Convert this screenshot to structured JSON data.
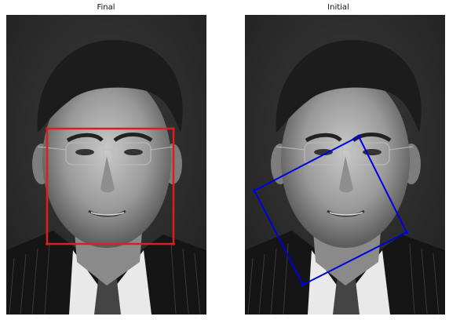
{
  "panels": {
    "left": {
      "title": "Final"
    },
    "right": {
      "title": "Initial"
    }
  },
  "colors": {
    "final_box": "#e41a1c",
    "initial_box": "#0000e0",
    "background": "#ffffff",
    "photo_dark": "#2b2b2b"
  }
}
